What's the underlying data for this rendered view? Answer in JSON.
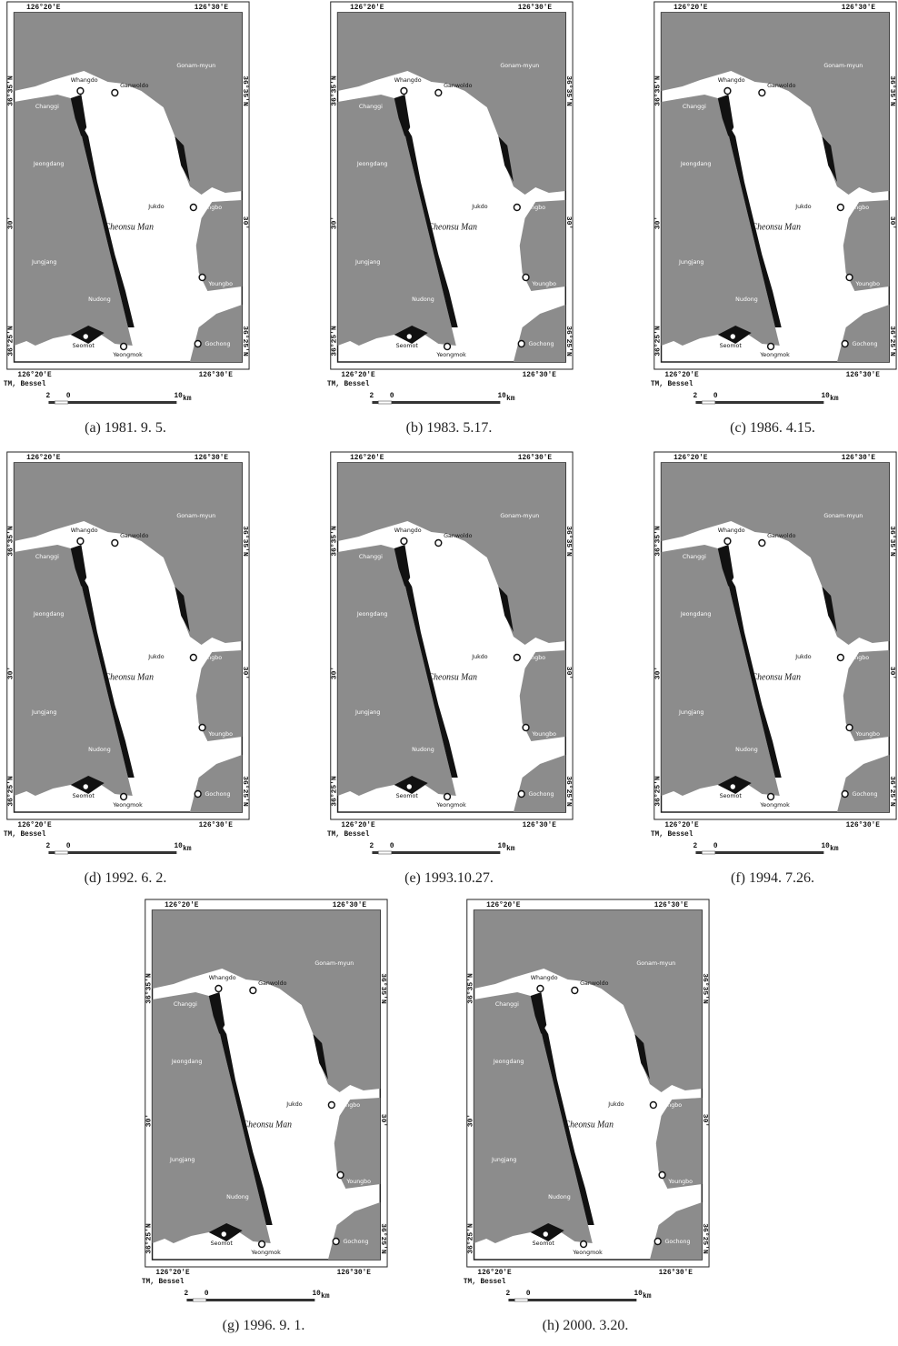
{
  "figure": {
    "coordinates": {
      "west": "126°20'E",
      "east": "126°30'E",
      "north": "36°35'N",
      "middle": "30'",
      "south": "36°25'N"
    },
    "projection": "TM, Bessel",
    "bay": "Cheonsu Man",
    "places": [
      "Gonam-myun",
      "Whangdo",
      "Ganwoldo",
      "Changgi",
      "Jeongdang",
      "Jukdo",
      "Hongbo",
      "Jungjang",
      "Nudong",
      "Youngbo",
      "Seomot",
      "Yeongmok",
      "Gochong"
    ],
    "scale": {
      "ticks": [
        "2",
        "0",
        "10"
      ],
      "unit": "km"
    }
  },
  "panels": [
    {
      "caption": "(a) 1981. 9. 5."
    },
    {
      "caption": "(b) 1983. 5.17."
    },
    {
      "caption": "(c) 1986. 4.15."
    },
    {
      "caption": "(d) 1992. 6. 2."
    },
    {
      "caption": "(e) 1993.10.27."
    },
    {
      "caption": "(f) 1994. 7.26."
    },
    {
      "caption": "(g) 1996. 9. 1."
    },
    {
      "caption": "(h) 2000. 3.20."
    }
  ]
}
